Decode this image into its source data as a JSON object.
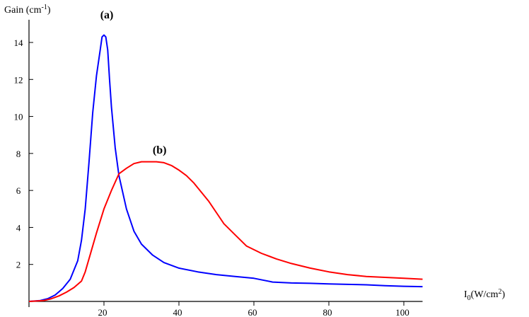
{
  "chart_data": {
    "type": "line",
    "title": "",
    "ylabel": {
      "base": "Gain (cm",
      "sup": "-1",
      "tail": ")"
    },
    "xlabel": {
      "pre": "I",
      "sub": "0",
      "mid": "(W/cm",
      "sup": "2",
      "tail": ")"
    },
    "xlim": [
      0,
      105
    ],
    "ylim": [
      0,
      15
    ],
    "xticks": [
      20,
      40,
      60,
      80,
      100
    ],
    "yticks": [
      2,
      4,
      6,
      8,
      10,
      12,
      14
    ],
    "grid": false,
    "series": [
      {
        "name": "(a)",
        "color": "#0000ff",
        "x": [
          0,
          3,
          5,
          7,
          9,
          11,
          13,
          14,
          15,
          16,
          17,
          18,
          19,
          19.5,
          20,
          20.5,
          21,
          21.5,
          22,
          23,
          24,
          26,
          28,
          30,
          33,
          36,
          40,
          45,
          50,
          55,
          60,
          65,
          70,
          75,
          80,
          85,
          90,
          95,
          100,
          105
        ],
        "y": [
          0,
          0.05,
          0.15,
          0.35,
          0.7,
          1.2,
          2.2,
          3.3,
          5.0,
          7.5,
          10.2,
          12.2,
          13.6,
          14.3,
          14.4,
          14.3,
          13.6,
          12.0,
          10.5,
          8.3,
          6.8,
          5.0,
          3.8,
          3.1,
          2.5,
          2.1,
          1.8,
          1.6,
          1.45,
          1.35,
          1.25,
          1.05,
          1.0,
          0.98,
          0.95,
          0.92,
          0.9,
          0.85,
          0.82,
          0.8
        ]
      },
      {
        "name": "(b)",
        "color": "#ff0000",
        "x": [
          0,
          4,
          6,
          8,
          10,
          12,
          14,
          15,
          16,
          18,
          20,
          22,
          24,
          26,
          28,
          30,
          32,
          34,
          36,
          38,
          40,
          42,
          44,
          46,
          48,
          50,
          52,
          55,
          58,
          62,
          66,
          70,
          75,
          80,
          85,
          90,
          95,
          100,
          105
        ],
        "y": [
          0,
          0.05,
          0.15,
          0.3,
          0.5,
          0.75,
          1.1,
          1.6,
          2.3,
          3.7,
          5.0,
          6.0,
          6.9,
          7.2,
          7.45,
          7.55,
          7.55,
          7.55,
          7.5,
          7.35,
          7.1,
          6.8,
          6.4,
          5.9,
          5.4,
          4.8,
          4.2,
          3.6,
          3.0,
          2.6,
          2.3,
          2.05,
          1.8,
          1.6,
          1.45,
          1.35,
          1.3,
          1.25,
          1.2
        ]
      }
    ],
    "annotations": [
      {
        "text": "(a)",
        "x": 19,
        "y": 15.3
      },
      {
        "text": "(b)",
        "x": 33,
        "y": 8.0
      }
    ]
  }
}
